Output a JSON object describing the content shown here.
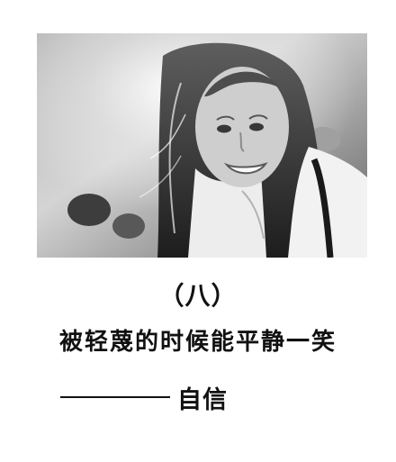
{
  "content": {
    "chapter_label": "（八）",
    "quote_line": "被轻蔑的时候能平静一笑",
    "signature_text": "自信"
  },
  "photo": {
    "description": "Black-and-white portrait of a smiling girl with long hair"
  }
}
